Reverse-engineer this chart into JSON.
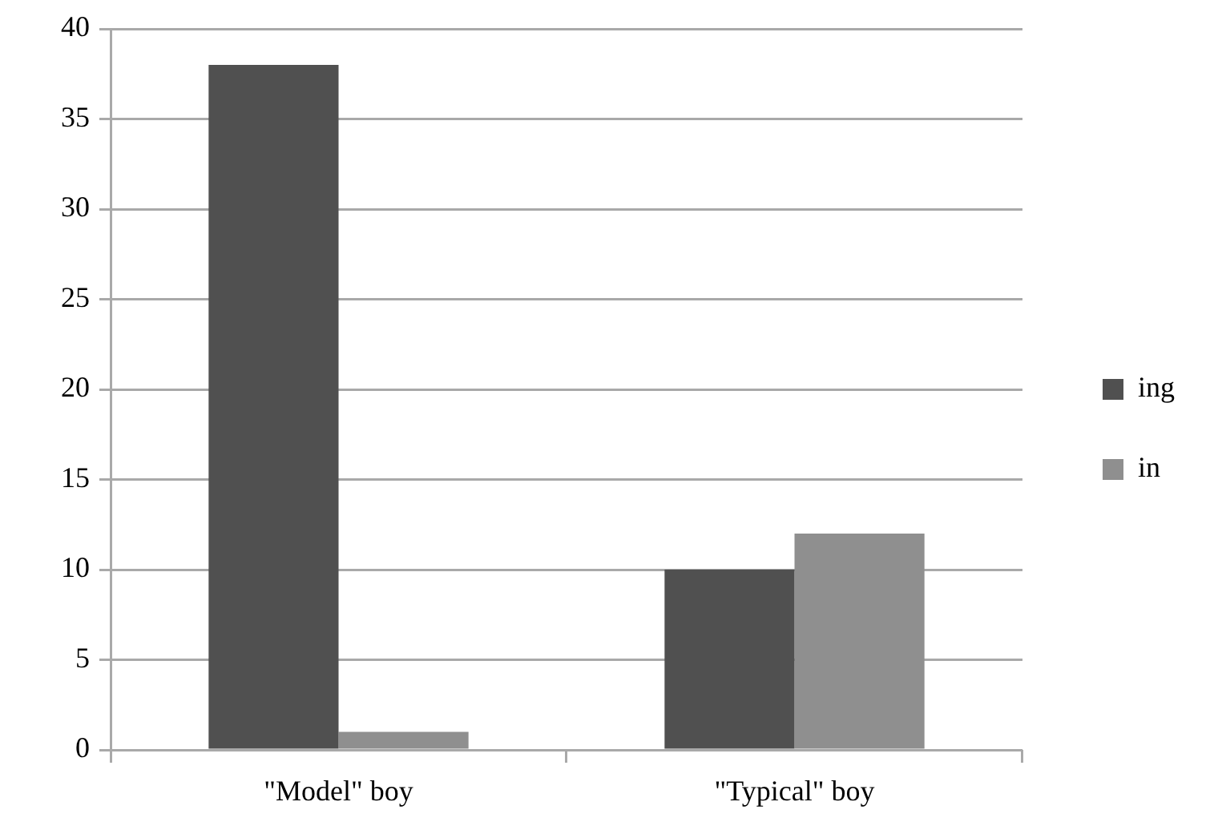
{
  "chart_data": {
    "type": "bar",
    "categories": [
      "\"Model\" boy",
      "\"Typical\" boy"
    ],
    "series": [
      {
        "name": "ing",
        "color": "#505050",
        "values": [
          38,
          10
        ]
      },
      {
        "name": "in",
        "color": "#8f8f8f",
        "values": [
          1,
          12
        ]
      }
    ],
    "ylim": [
      0,
      40
    ],
    "yticks": [
      0,
      5,
      10,
      15,
      20,
      25,
      30,
      35,
      40
    ],
    "grid": "y",
    "legend": "right"
  }
}
